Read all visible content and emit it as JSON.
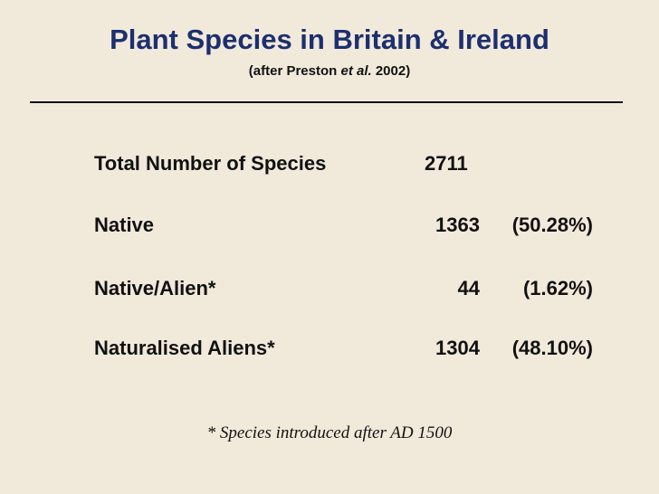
{
  "slide": {
    "title": "Plant Species in Britain & Ireland",
    "subtitle": {
      "prefix": "(after Preston ",
      "italic": "et al.",
      "suffix": " 2002)"
    },
    "rows": [
      {
        "label": "Total Number of Species",
        "count": "2711",
        "percent": ""
      },
      {
        "label": "Native",
        "count": "1363",
        "percent": "(50.28%)"
      },
      {
        "label": "Native/Alien*",
        "count": "44",
        "percent": "(1.62%)"
      },
      {
        "label": "Naturalised Aliens*",
        "count": "1304",
        "percent": "(48.10%)"
      }
    ],
    "footnote": "* Species introduced after AD 1500",
    "colors": {
      "background": "#f1eadb",
      "title": "#1d2f6f",
      "text": "#111111"
    }
  }
}
